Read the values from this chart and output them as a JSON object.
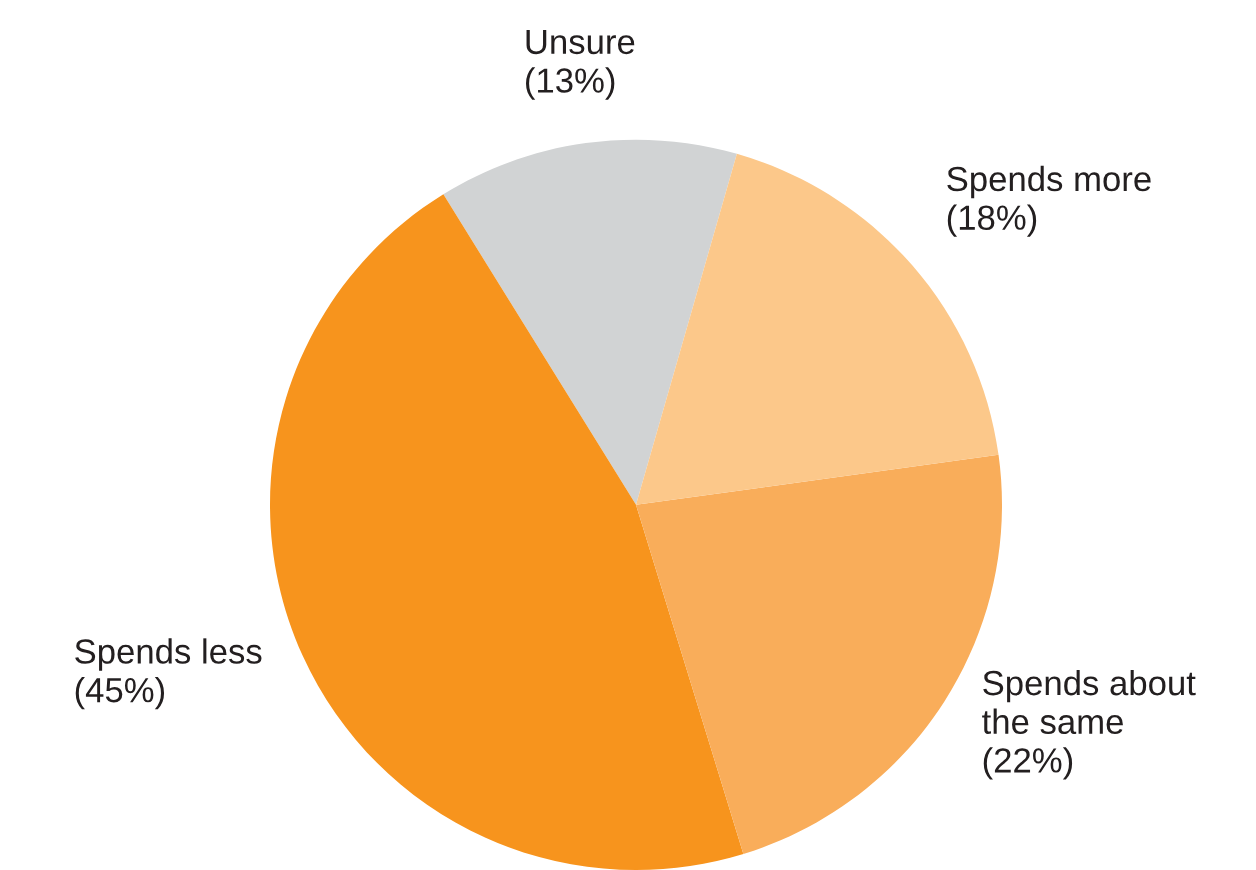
{
  "chart_data": {
    "type": "pie",
    "categories": [
      "Unsure",
      "Spends less",
      "Spends about the same",
      "Spends more"
    ],
    "values": [
      13,
      45,
      22,
      18
    ],
    "value_labels": [
      "(13%)",
      "(45%)",
      "(22%)",
      "(18%)"
    ],
    "colors": [
      "#d1d3d4",
      "#f7941d",
      "#f9ad5a",
      "#fcc88a"
    ],
    "legend": false
  }
}
